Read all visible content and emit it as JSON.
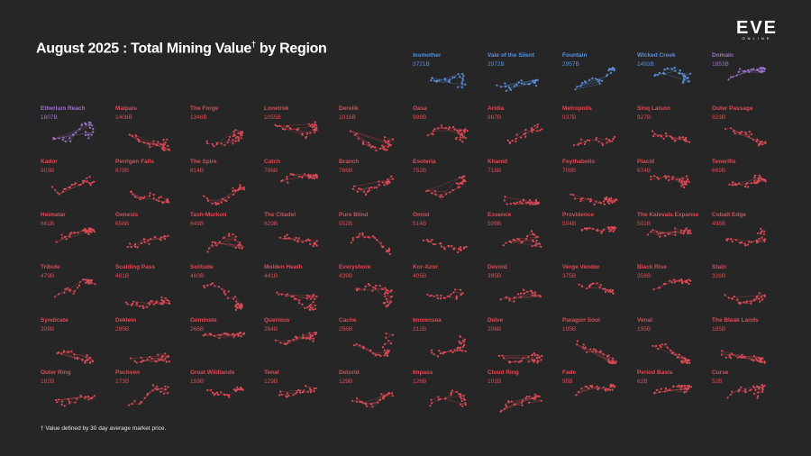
{
  "header": {
    "title": "August 2025 : Total Mining Value",
    "title_mark": "†",
    "title_suffix": " by Region"
  },
  "logo": {
    "main": "EVE",
    "sub": "ONLINE"
  },
  "footnote": "† Value defined by 30 day average market price.",
  "colors": {
    "background": "#262626",
    "blue": "#5a8fd8",
    "purple": "#9a72c8",
    "red": "#dd4a55"
  },
  "chart_data": {
    "type": "small-multiples",
    "title": "August 2025 : Total Mining Value† by Region",
    "unit": "B",
    "regions": [
      {
        "name": "Insmother",
        "value": "3721B",
        "color": "blue"
      },
      {
        "name": "Vale of the Silent",
        "value": "2972B",
        "color": "blue"
      },
      {
        "name": "Fountain",
        "value": "2957B",
        "color": "blue"
      },
      {
        "name": "Wicked Creek",
        "value": "2493B",
        "color": "blue"
      },
      {
        "name": "Domain",
        "value": "1853B",
        "color": "purple"
      },
      {
        "name": "Etherium Reach",
        "value": "1807B",
        "color": "purple"
      },
      {
        "name": "Malpais",
        "value": "1408B",
        "color": "red"
      },
      {
        "name": "The Forge",
        "value": "1346B",
        "color": "red"
      },
      {
        "name": "Lonetrek",
        "value": "1055B",
        "color": "red"
      },
      {
        "name": "Derelik",
        "value": "1016B",
        "color": "red"
      },
      {
        "name": "Oasa",
        "value": "999B",
        "color": "red"
      },
      {
        "name": "Aridia",
        "value": "987B",
        "color": "red"
      },
      {
        "name": "Metropolis",
        "value": "937B",
        "color": "red"
      },
      {
        "name": "Sinq Laison",
        "value": "927B",
        "color": "red"
      },
      {
        "name": "Outer Passage",
        "value": "923B",
        "color": "red"
      },
      {
        "name": "Kador",
        "value": "903B",
        "color": "red"
      },
      {
        "name": "Perrigen Falls",
        "value": "878B",
        "color": "red"
      },
      {
        "name": "The Spire",
        "value": "814B",
        "color": "red"
      },
      {
        "name": "Catch",
        "value": "786B",
        "color": "red"
      },
      {
        "name": "Branch",
        "value": "766B",
        "color": "red"
      },
      {
        "name": "Esoteria",
        "value": "752B",
        "color": "red"
      },
      {
        "name": "Khanid",
        "value": "718B",
        "color": "red"
      },
      {
        "name": "Feythabolis",
        "value": "708B",
        "color": "red"
      },
      {
        "name": "Placid",
        "value": "674B",
        "color": "red"
      },
      {
        "name": "Tenerifis",
        "value": "669B",
        "color": "red"
      },
      {
        "name": "Heimatar",
        "value": "661B",
        "color": "red"
      },
      {
        "name": "Genesis",
        "value": "656B",
        "color": "red"
      },
      {
        "name": "Tash-Murkon",
        "value": "649B",
        "color": "red"
      },
      {
        "name": "The Citadel",
        "value": "629B",
        "color": "red"
      },
      {
        "name": "Pure Blind",
        "value": "552B",
        "color": "red"
      },
      {
        "name": "Omist",
        "value": "514B",
        "color": "red"
      },
      {
        "name": "Essence",
        "value": "509B",
        "color": "red"
      },
      {
        "name": "Providence",
        "value": "504B",
        "color": "red"
      },
      {
        "name": "The Kalevala Expanse",
        "value": "502B",
        "color": "red"
      },
      {
        "name": "Cobalt Edge",
        "value": "498B",
        "color": "red"
      },
      {
        "name": "Tribute",
        "value": "479B",
        "color": "red"
      },
      {
        "name": "Scalding Pass",
        "value": "461B",
        "color": "red"
      },
      {
        "name": "Solitude",
        "value": "460B",
        "color": "red"
      },
      {
        "name": "Molden Heath",
        "value": "441B",
        "color": "red"
      },
      {
        "name": "Everyshore",
        "value": "439B",
        "color": "red"
      },
      {
        "name": "Kor-Azor",
        "value": "405B",
        "color": "red"
      },
      {
        "name": "Devoid",
        "value": "395B",
        "color": "red"
      },
      {
        "name": "Verge Vendor",
        "value": "375B",
        "color": "red"
      },
      {
        "name": "Black Rise",
        "value": "358B",
        "color": "red"
      },
      {
        "name": "Stain",
        "value": "328B",
        "color": "red"
      },
      {
        "name": "Syndicate",
        "value": "309B",
        "color": "red"
      },
      {
        "name": "Deklein",
        "value": "295B",
        "color": "red"
      },
      {
        "name": "Geminate",
        "value": "266B",
        "color": "red"
      },
      {
        "name": "Querious",
        "value": "264B",
        "color": "red"
      },
      {
        "name": "Cache",
        "value": "256B",
        "color": "red"
      },
      {
        "name": "Immensea",
        "value": "212B",
        "color": "red"
      },
      {
        "name": "Delve",
        "value": "206B",
        "color": "red"
      },
      {
        "name": "Paragon Soul",
        "value": "195B",
        "color": "red"
      },
      {
        "name": "Venal",
        "value": "195B",
        "color": "red"
      },
      {
        "name": "The Bleak Lands",
        "value": "185B",
        "color": "red"
      },
      {
        "name": "Outer Ring",
        "value": "182B",
        "color": "red"
      },
      {
        "name": "Pochven",
        "value": "173B",
        "color": "red"
      },
      {
        "name": "Great Wildlands",
        "value": "159B",
        "color": "red"
      },
      {
        "name": "Tenal",
        "value": "129B",
        "color": "red"
      },
      {
        "name": "Detorid",
        "value": "129B",
        "color": "red"
      },
      {
        "name": "Impass",
        "value": "126B",
        "color": "red"
      },
      {
        "name": "Cloud Ring",
        "value": "101B",
        "color": "red"
      },
      {
        "name": "Fade",
        "value": "95B",
        "color": "red"
      },
      {
        "name": "Period Basis",
        "value": "62B",
        "color": "red"
      },
      {
        "name": "Curse",
        "value": "52B",
        "color": "red"
      }
    ]
  }
}
